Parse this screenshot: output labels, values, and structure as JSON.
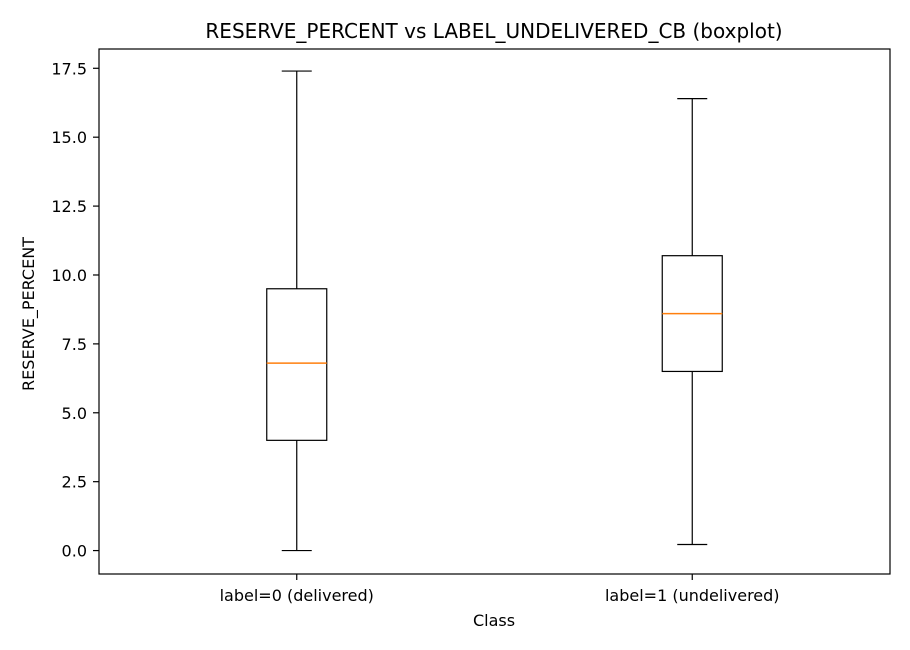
{
  "chart_data": {
    "type": "boxplot",
    "title": "RESERVE_PERCENT vs LABEL_UNDELIVERED_CB (boxplot)",
    "xlabel": "Class",
    "ylabel": "RESERVE_PERCENT",
    "ylim": [
      -0.85,
      18.2
    ],
    "yticks": [
      0.0,
      2.5,
      5.0,
      7.5,
      10.0,
      12.5,
      15.0,
      17.5
    ],
    "ytick_labels": [
      "0.0",
      "2.5",
      "5.0",
      "7.5",
      "10.0",
      "12.5",
      "15.0",
      "17.5"
    ],
    "categories": [
      "label=0 (delivered)",
      "label=1 (undelivered)"
    ],
    "boxes": [
      {
        "whisker_low": 0.0,
        "q1": 4.0,
        "median": 6.8,
        "q3": 9.5,
        "whisker_high": 17.4
      },
      {
        "whisker_low": 0.22,
        "q1": 6.5,
        "median": 8.6,
        "q3": 10.7,
        "whisker_high": 16.4
      }
    ],
    "grid": false,
    "colors": {
      "box": "#000000",
      "median": "#ff7f0e",
      "axes": "#000000"
    }
  }
}
